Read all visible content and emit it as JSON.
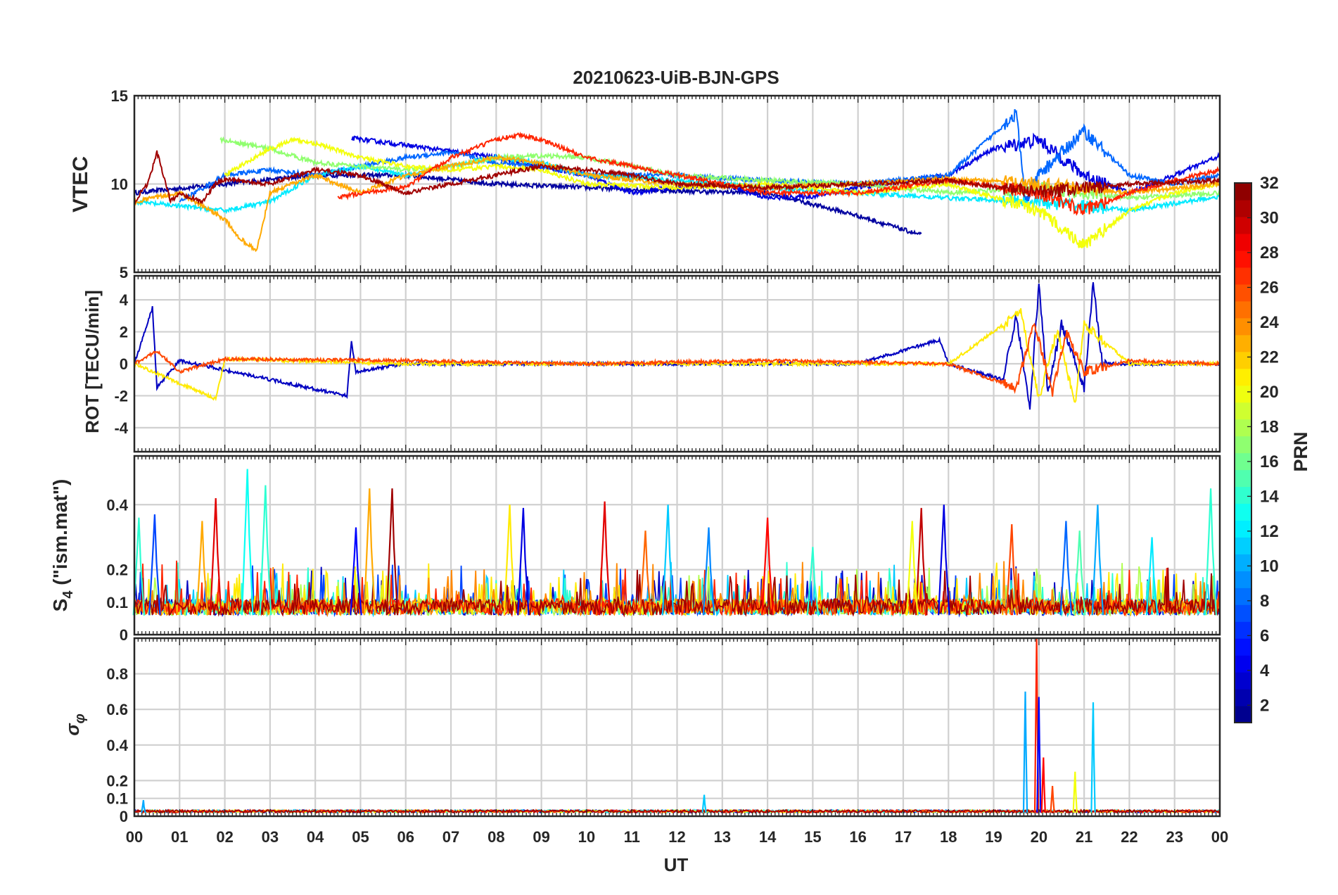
{
  "chart_data": {
    "type": "line",
    "title": "20210623-UiB-BJN-GPS",
    "xlabel": "UT",
    "x_tick_labels": [
      "00",
      "01",
      "02",
      "03",
      "04",
      "05",
      "06",
      "07",
      "08",
      "09",
      "10",
      "11",
      "12",
      "13",
      "14",
      "15",
      "16",
      "17",
      "18",
      "19",
      "20",
      "21",
      "22",
      "23",
      "00"
    ],
    "xlim": [
      0,
      24
    ],
    "grid": true,
    "colorbar": {
      "label": "PRN",
      "range": [
        1,
        32
      ],
      "tick_labels": [
        "2",
        "4",
        "6",
        "8",
        "10",
        "12",
        "14",
        "16",
        "18",
        "20",
        "22",
        "24",
        "26",
        "28",
        "30",
        "32"
      ],
      "colormap": "jet",
      "colors": [
        "#00007f",
        "#0000c8",
        "#0000ff",
        "#0040ff",
        "#0080ff",
        "#00c0ff",
        "#10ffef",
        "#50ffaf",
        "#90ff6f",
        "#d0ff2f",
        "#ffe000",
        "#ffa000",
        "#ff6000",
        "#ff2000",
        "#df0000",
        "#7f0000"
      ]
    },
    "panels": [
      {
        "ylabel": "VTEC",
        "ylim": [
          5,
          15
        ],
        "y_tick_labels": [
          "15",
          "10",
          "5"
        ],
        "description_values": {
          "typical_range": [
            8,
            13
          ],
          "peak_max": 14.2,
          "disturbed_period_UT": [
            19.3,
            21.5
          ]
        },
        "series": [
          {
            "prn": 2,
            "x": [
              0,
              2,
              4,
              6,
              8,
              10,
              12,
              14,
              16,
              17.4
            ],
            "y": [
              9.5,
              10,
              10.5,
              10.5,
              10,
              9.8,
              9.6,
              9.5,
              8.2,
              7.1
            ]
          },
          {
            "prn": 4,
            "x": [
              4.8,
              6,
              8,
              9,
              10,
              11,
              12,
              13,
              14,
              15,
              16,
              18,
              19,
              20,
              21,
              22,
              23,
              24
            ],
            "y": [
              12.6,
              12.2,
              11.5,
              11,
              10.5,
              9.5,
              9.8,
              10,
              9.2,
              9.3,
              9.8,
              10.5,
              12,
              12.5,
              10.5,
              9.5,
              10.5,
              11.6
            ]
          },
          {
            "prn": 8,
            "x": [
              1,
              2,
              3,
              4,
              5,
              6,
              7,
              8,
              9,
              10,
              12,
              14,
              16,
              18,
              19.5,
              19.7,
              20,
              21,
              22,
              23,
              24
            ],
            "y": [
              9,
              10.5,
              10.8,
              10.5,
              11,
              11.5,
              11.8,
              11.2,
              11,
              10.5,
              10.5,
              10.2,
              10,
              10.5,
              14,
              9,
              10.5,
              13,
              10.5,
              10,
              10.5
            ]
          },
          {
            "prn": 12,
            "x": [
              0,
              2,
              3,
              4,
              5,
              6,
              7,
              8,
              9,
              10,
              12,
              14,
              16,
              18,
              20,
              22,
              24
            ],
            "y": [
              9,
              8.5,
              9,
              10.5,
              11,
              10.5,
              11,
              11.5,
              11.2,
              10.5,
              10.2,
              9.8,
              9.5,
              9.2,
              9,
              8.5,
              9.3
            ]
          },
          {
            "prn": 17,
            "x": [
              1.9,
              3,
              4,
              5,
              6,
              7,
              8,
              9,
              10,
              11,
              12,
              14,
              16,
              18,
              20,
              22,
              24
            ],
            "y": [
              12.5,
              12,
              11.2,
              11,
              10.8,
              11,
              11.5,
              11.6,
              11.5,
              11,
              10.5,
              10.2,
              10,
              9.5,
              9.8,
              9.2,
              9.5
            ]
          },
          {
            "prn": 20,
            "x": [
              2,
              3,
              3.5,
              4,
              5,
              6,
              7,
              8,
              9,
              10,
              12,
              14,
              16,
              18,
              20,
              21,
              22,
              23,
              24
            ],
            "y": [
              10.5,
              12,
              12.5,
              12.3,
              11.5,
              11,
              10.8,
              11,
              10.8,
              10,
              9.8,
              10,
              9.5,
              10,
              8.5,
              6.5,
              8.5,
              9.5,
              10
            ]
          },
          {
            "prn": 23,
            "x": [
              0,
              1,
              2,
              2.3,
              2.7,
              3,
              4,
              5,
              6,
              7,
              8,
              9,
              10,
              12,
              14,
              16,
              18,
              20,
              22,
              24
            ],
            "y": [
              9,
              9.5,
              8,
              7,
              6.2,
              9.5,
              10.5,
              9.5,
              10.5,
              11,
              11.5,
              11.2,
              10.5,
              10,
              9.8,
              10,
              10.3,
              10,
              9.5,
              10
            ]
          },
          {
            "prn": 27,
            "x": [
              4.5,
              5,
              6,
              7,
              8,
              8.5,
              9,
              10,
              11,
              12,
              13,
              14,
              16,
              18,
              20,
              21,
              22,
              23,
              24
            ],
            "y": [
              9.2,
              9.5,
              9.8,
              11.5,
              12.5,
              12.8,
              12.5,
              11.5,
              11,
              10.5,
              10,
              9.5,
              9.5,
              10.2,
              9.5,
              8.5,
              9.5,
              10.2,
              10.8
            ]
          },
          {
            "prn": 31,
            "x": [
              0,
              0.3,
              0.5,
              0.8,
              1,
              1.5,
              1.8,
              2,
              3,
              4,
              5,
              6,
              7,
              8,
              9,
              10,
              11,
              12,
              14,
              16,
              18,
              20,
              22,
              24
            ],
            "y": [
              9,
              10,
              11.8,
              9,
              9.5,
              9,
              10,
              10.3,
              10,
              10.8,
              10.5,
              9.5,
              10,
              10.5,
              11,
              10.8,
              10.5,
              10,
              9.8,
              10,
              10.2,
              9.5,
              10,
              10.2
            ]
          }
        ]
      },
      {
        "ylabel": "ROT [TECU/min]",
        "ylim": [
          -5.5,
          5.5
        ],
        "y_tick_labels": [
          "4",
          "2",
          "0",
          "-2",
          "-4"
        ],
        "description_values": {
          "baseline": 0,
          "max": 5.0,
          "min": -2.8,
          "active_period_UT": [
            19.2,
            21.3
          ]
        },
        "series": [
          {
            "prn": 3,
            "x": [
              0,
              0.4,
              0.5,
              1,
              4.7,
              4.8,
              4.9,
              6,
              8,
              10,
              12,
              14,
              16,
              17.8,
              18,
              19.2,
              19.5,
              19.8,
              20,
              20.2,
              20.5,
              21,
              21.2,
              21.4,
              22,
              24
            ],
            "y": [
              0,
              3.5,
              -1.5,
              0.2,
              -2,
              1.4,
              -0.5,
              0,
              0,
              0,
              0,
              0,
              0,
              1.5,
              0,
              -1,
              3,
              -2.8,
              5,
              -1.8,
              2.5,
              -1.5,
              5,
              0,
              0,
              0
            ]
          },
          {
            "prn": 21,
            "x": [
              0,
              1.8,
              2,
              6,
              10,
              14,
              18,
              19.6,
              20,
              20.4,
              20.8,
              21,
              22,
              24
            ],
            "y": [
              0,
              -2.2,
              0.3,
              0,
              0,
              0,
              0,
              3.2,
              -2.2,
              2.1,
              -2.5,
              2.5,
              0,
              0
            ]
          },
          {
            "prn": 26,
            "x": [
              0,
              0.5,
              1,
              2,
              6,
              10,
              14,
              18,
              19.5,
              19.9,
              20.3,
              20.6,
              21,
              22,
              24
            ],
            "y": [
              0,
              0.8,
              -0.5,
              0.3,
              0.2,
              0,
              0.2,
              0,
              -1.5,
              2.5,
              -1.8,
              2,
              -0.5,
              0.2,
              0
            ]
          }
        ]
      },
      {
        "ylabel": "S_4 (\"ism.mat\")",
        "ylim": [
          0,
          0.55
        ],
        "y_tick_labels": [
          "0.4",
          "0.2",
          "0.1",
          "0"
        ],
        "description_values": {
          "background": 0.06,
          "max": 0.52,
          "peaks_UT": [
            0.1,
            1.8,
            2.5,
            5.2,
            5.7,
            8.4,
            10.4,
            17.4,
            19.4,
            24
          ]
        },
        "peaks": [
          {
            "prn": 14,
            "x": 0.1,
            "y": 0.36
          },
          {
            "prn": 7,
            "x": 0.45,
            "y": 0.37
          },
          {
            "prn": 23,
            "x": 1.5,
            "y": 0.35
          },
          {
            "prn": 29,
            "x": 1.8,
            "y": 0.42
          },
          {
            "prn": 13,
            "x": 2.5,
            "y": 0.51
          },
          {
            "prn": 14,
            "x": 2.9,
            "y": 0.46
          },
          {
            "prn": 5,
            "x": 4.9,
            "y": 0.33
          },
          {
            "prn": 23,
            "x": 5.2,
            "y": 0.45
          },
          {
            "prn": 31,
            "x": 5.7,
            "y": 0.45
          },
          {
            "prn": 21,
            "x": 8.3,
            "y": 0.4
          },
          {
            "prn": 4,
            "x": 8.6,
            "y": 0.39
          },
          {
            "prn": 29,
            "x": 10.4,
            "y": 0.41
          },
          {
            "prn": 25,
            "x": 11.3,
            "y": 0.32
          },
          {
            "prn": 11,
            "x": 11.8,
            "y": 0.4
          },
          {
            "prn": 9,
            "x": 12.7,
            "y": 0.33
          },
          {
            "prn": 28,
            "x": 14.0,
            "y": 0.36
          },
          {
            "prn": 14,
            "x": 15.0,
            "y": 0.27
          },
          {
            "prn": 30,
            "x": 17.4,
            "y": 0.39
          },
          {
            "prn": 20,
            "x": 17.2,
            "y": 0.35
          },
          {
            "prn": 4,
            "x": 17.9,
            "y": 0.4
          },
          {
            "prn": 26,
            "x": 19.4,
            "y": 0.34
          },
          {
            "prn": 8,
            "x": 20.6,
            "y": 0.35
          },
          {
            "prn": 10,
            "x": 21.3,
            "y": 0.4
          },
          {
            "prn": 15,
            "x": 20.9,
            "y": 0.32
          },
          {
            "prn": 12,
            "x": 22.5,
            "y": 0.3
          },
          {
            "prn": 14,
            "x": 23.8,
            "y": 0.45
          }
        ]
      },
      {
        "ylabel": "σ_φ",
        "ylim": [
          0,
          1
        ],
        "y_tick_labels": [
          "0.8",
          "0.6",
          "0.4",
          "0.2",
          "0.1",
          "0"
        ],
        "description_values": {
          "background": 0.02,
          "max": 1.0,
          "spikes_UT": [
            19.7,
            19.95,
            20.8,
            21.2
          ]
        },
        "peaks": [
          {
            "prn": 10,
            "x": 0.2,
            "y": 0.09
          },
          {
            "prn": 11,
            "x": 12.6,
            "y": 0.12
          },
          {
            "prn": 10,
            "x": 19.7,
            "y": 0.7
          },
          {
            "prn": 27,
            "x": 19.95,
            "y": 1.0
          },
          {
            "prn": 5,
            "x": 20.0,
            "y": 0.67
          },
          {
            "prn": 28,
            "x": 20.1,
            "y": 0.33
          },
          {
            "prn": 26,
            "x": 20.3,
            "y": 0.17
          },
          {
            "prn": 20,
            "x": 20.8,
            "y": 0.25
          },
          {
            "prn": 11,
            "x": 21.2,
            "y": 0.64
          }
        ]
      }
    ]
  }
}
